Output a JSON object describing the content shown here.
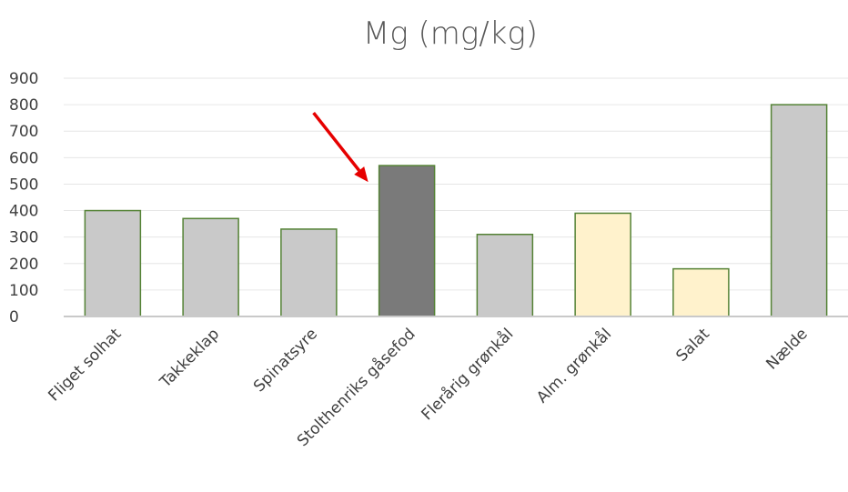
{
  "chart_data": {
    "type": "bar",
    "title": "Mg (mg/kg)",
    "xlabel": "",
    "ylabel": "",
    "ylim": [
      0,
      900
    ],
    "yticks": [
      0,
      100,
      200,
      300,
      400,
      500,
      600,
      700,
      800,
      900
    ],
    "grid": true,
    "categories": [
      "Fliget solhat",
      "Takkeklap",
      "Spinatsyre",
      "Stolthenriks gåsefod",
      "Flerårig grønkål",
      "Alm. grønkål",
      "Salat",
      "Nælde"
    ],
    "values": [
      400,
      370,
      330,
      570,
      310,
      390,
      180,
      800
    ],
    "bar_colors": [
      "#c9c9c9",
      "#c9c9c9",
      "#c9c9c9",
      "#7a7a7a",
      "#c9c9c9",
      "#fff2cc",
      "#fff2cc",
      "#c9c9c9"
    ],
    "bar_edge_color": "#548235",
    "highlight": {
      "category": "Stolthenriks gåsefod",
      "marker": "red-arrow",
      "color": "#e60000"
    }
  }
}
